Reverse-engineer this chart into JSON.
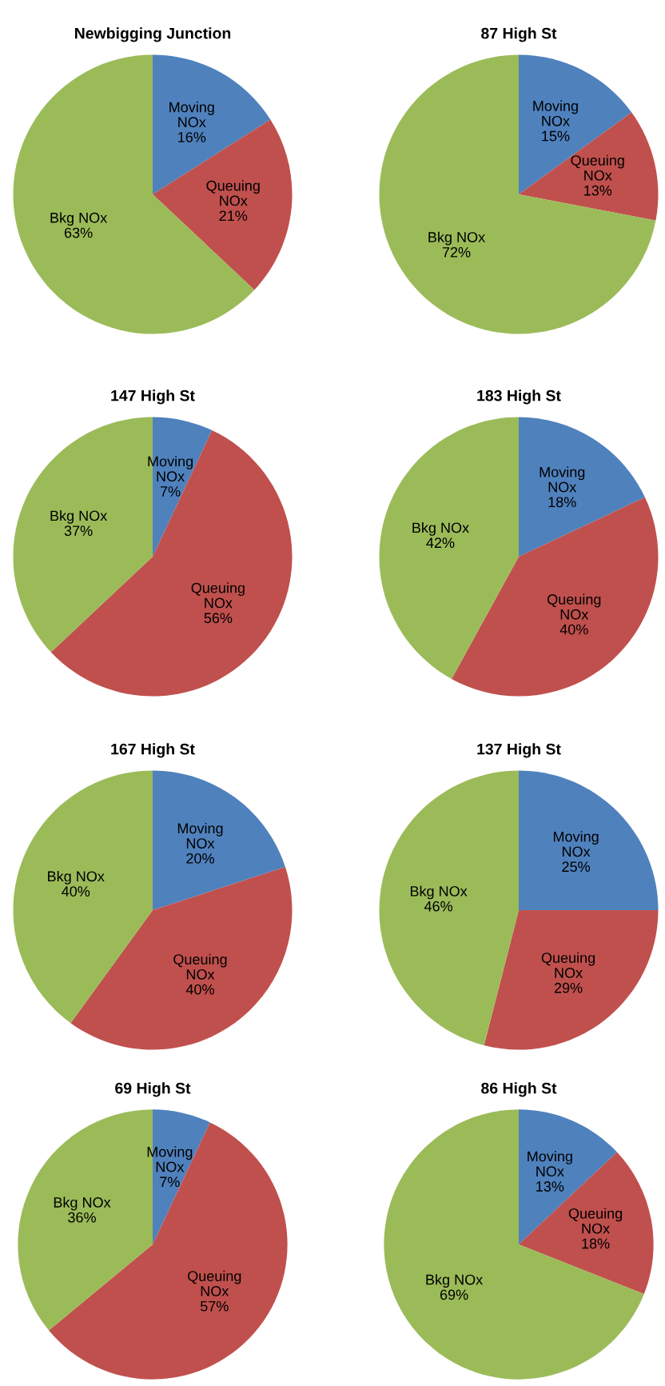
{
  "chart_data": [
    {
      "type": "pie",
      "title": "Newbigging Junction",
      "categories": [
        "Moving\nNOx",
        "Queuing\nNOx",
        "Bkg NOx"
      ],
      "values": [
        16,
        21,
        63
      ],
      "value_labels": [
        "16%",
        "21%",
        "63%"
      ],
      "colors": [
        "#4f81bd",
        "#c0504d",
        "#9bbb59"
      ]
    },
    {
      "type": "pie",
      "title": "87 High St",
      "categories": [
        "Moving\nNOx",
        "Queuing\nNOx",
        "Bkg NOx"
      ],
      "values": [
        15,
        13,
        72
      ],
      "value_labels": [
        "15%",
        "13%",
        "72%"
      ],
      "colors": [
        "#4f81bd",
        "#c0504d",
        "#9bbb59"
      ]
    },
    {
      "type": "pie",
      "title": "147 High St",
      "categories": [
        "Moving\nNOx",
        "Queuing\nNOx",
        "Bkg NOx"
      ],
      "values": [
        7,
        56,
        37
      ],
      "value_labels": [
        "7%",
        "56%",
        "37%"
      ],
      "colors": [
        "#4f81bd",
        "#c0504d",
        "#9bbb59"
      ]
    },
    {
      "type": "pie",
      "title": "183 High St",
      "categories": [
        "Moving\nNOx",
        "Queuing\nNOx",
        "Bkg NOx"
      ],
      "values": [
        18,
        40,
        42
      ],
      "value_labels": [
        "18%",
        "40%",
        "42%"
      ],
      "colors": [
        "#4f81bd",
        "#c0504d",
        "#9bbb59"
      ]
    },
    {
      "type": "pie",
      "title": "167 High St",
      "categories": [
        "Moving\nNOx",
        "Queuing\nNOx",
        "Bkg NOx"
      ],
      "values": [
        20,
        40,
        40
      ],
      "value_labels": [
        "20%",
        "40%",
        "40%"
      ],
      "colors": [
        "#4f81bd",
        "#c0504d",
        "#9bbb59"
      ]
    },
    {
      "type": "pie",
      "title": "137 High St",
      "categories": [
        "Moving\nNOx",
        "Queuing\nNOx",
        "Bkg NOx"
      ],
      "values": [
        25,
        29,
        46
      ],
      "value_labels": [
        "25%",
        "29%",
        "46%"
      ],
      "colors": [
        "#4f81bd",
        "#c0504d",
        "#9bbb59"
      ]
    },
    {
      "type": "pie",
      "title": "69 High St",
      "categories": [
        "Moving\nNOx",
        "Queuing\nNOx",
        "Bkg NOx"
      ],
      "values": [
        7,
        57,
        36
      ],
      "value_labels": [
        "7%",
        "57%",
        "36%"
      ],
      "colors": [
        "#4f81bd",
        "#c0504d",
        "#9bbb59"
      ]
    },
    {
      "type": "pie",
      "title": "86 High St",
      "categories": [
        "Moving\nNOx",
        "Queuing\nNOx",
        "Bkg NOx"
      ],
      "values": [
        13,
        18,
        69
      ],
      "value_labels": [
        "13%",
        "18%",
        "69%"
      ],
      "colors": [
        "#4f81bd",
        "#c0504d",
        "#9bbb59"
      ]
    }
  ]
}
